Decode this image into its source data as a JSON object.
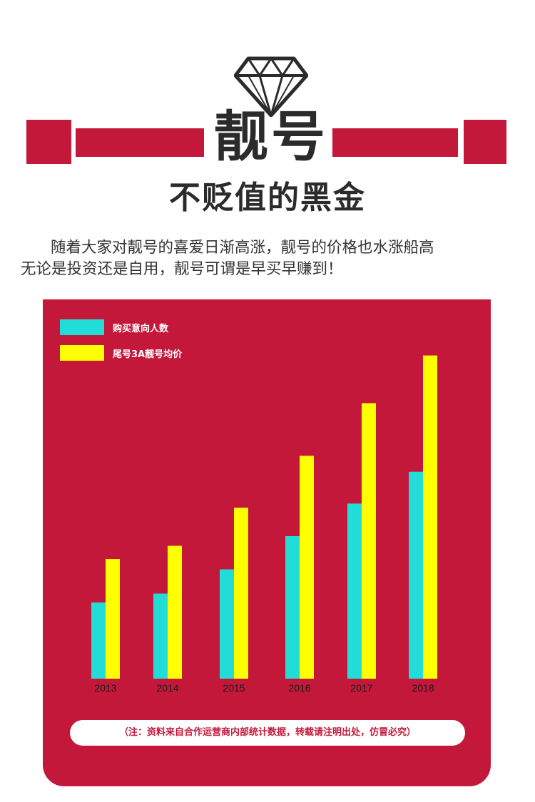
{
  "header": {
    "title": "靓号",
    "subtitle": "不贬值的黑金",
    "icon": "diamond-icon"
  },
  "description": {
    "line1": "随着大家对靓号的喜爱日渐高涨，靓号的价格也水涨船高",
    "line2": "无论是投资还是自用，靓号可谓是早买早赚到！"
  },
  "colors": {
    "accent": "#c4183b",
    "series1": "#22dcd8",
    "series2": "#ffff00",
    "text": "#2b2b2b"
  },
  "chart_data": {
    "type": "bar",
    "categories": [
      "2013",
      "2014",
      "2015",
      "2016",
      "2017",
      "2018"
    ],
    "series": [
      {
        "name": "购买意向人数",
        "values": [
          110,
          123,
          158,
          206,
          253,
          299
        ]
      },
      {
        "name": "尾号3A靓号均价",
        "values": [
          173,
          192,
          247,
          322,
          398,
          467
        ]
      }
    ],
    "ylim": [
      0,
      480
    ],
    "legend": "top-left",
    "grid": false
  },
  "note": "（注：资料来自合作运营商内部统计数据，转载请注明出处，仿冒必究）"
}
